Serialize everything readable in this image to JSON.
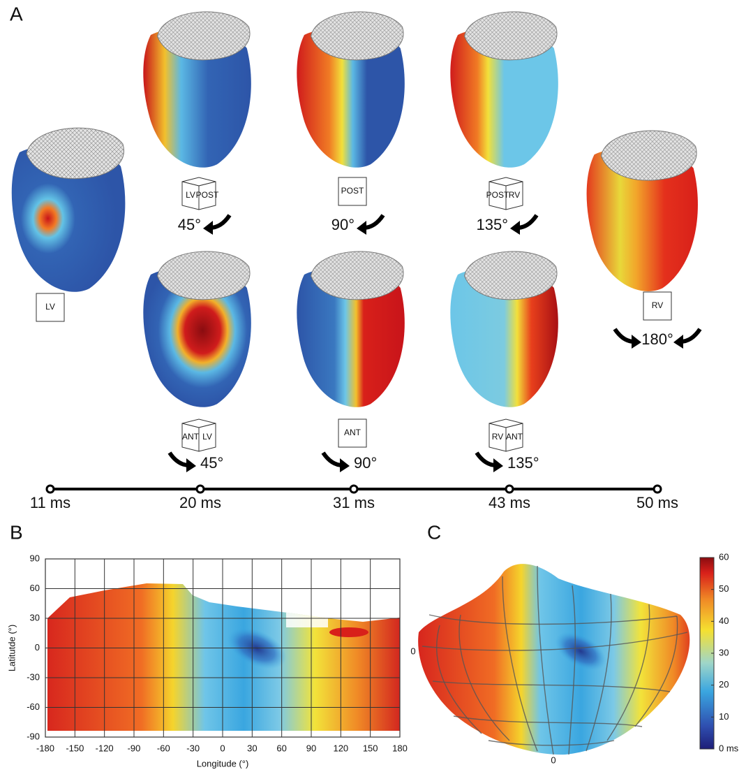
{
  "panel_a": {
    "label": "A",
    "left_view": {
      "faces": [
        "LV"
      ]
    },
    "top_row": [
      {
        "faces": [
          "LV",
          "POST"
        ],
        "angle": "45°"
      },
      {
        "faces": [
          "POST"
        ],
        "angle": "90°"
      },
      {
        "faces": [
          "POST",
          "RV"
        ],
        "angle": "135°"
      }
    ],
    "bottom_row": [
      {
        "faces": [
          "ANT",
          "LV"
        ],
        "angle": "45°"
      },
      {
        "faces": [
          "ANT"
        ],
        "angle": "90°"
      },
      {
        "faces": [
          "RV",
          "ANT"
        ],
        "angle": "135°"
      }
    ],
    "right_view": {
      "faces": [
        "RV"
      ],
      "angle": "180°"
    },
    "timeline": [
      "11 ms",
      "20 ms",
      "31 ms",
      "43 ms",
      "50 ms"
    ]
  },
  "panel_b": {
    "label": "B",
    "x_label": "Longitude (°)",
    "y_label": "Latitutde (°)",
    "xlim": [
      -180,
      180
    ],
    "ylim": [
      -90,
      90
    ],
    "xticks": [
      -180,
      -150,
      -120,
      -90,
      -60,
      -30,
      0,
      30,
      60,
      90,
      120,
      150,
      180
    ],
    "yticks": [
      -90,
      -60,
      -30,
      0,
      30,
      60,
      90
    ]
  },
  "panel_c": {
    "label": "C",
    "zero_labels": [
      "0",
      "0"
    ],
    "colorbar": {
      "lim": [
        0,
        60
      ],
      "ticks": [
        {
          "value": 0,
          "label": "0 ms"
        },
        10,
        20,
        30,
        40,
        50,
        60
      ]
    }
  }
}
